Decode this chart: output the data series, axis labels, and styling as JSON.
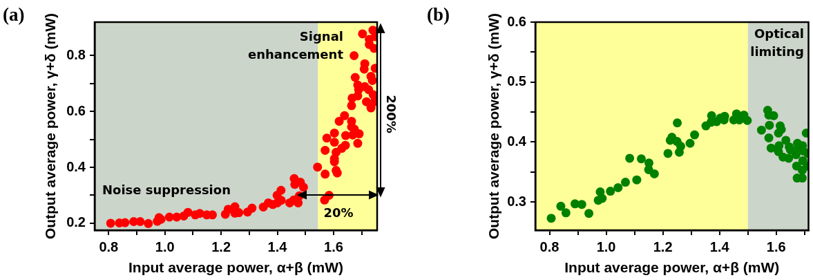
{
  "chart_data": [
    {
      "type": "scatter",
      "title": "(a)",
      "xlabel": "Input average power, α+β (mW)",
      "ylabel": "Output average power, γ+δ (mW)",
      "color": "#ff0000",
      "marker": "circle",
      "grid": false,
      "legend": false,
      "x": [
        0.807,
        0.838,
        0.858,
        0.889,
        0.912,
        0.941,
        0.973,
        0.979,
        0.986,
        1.016,
        1.042,
        1.067,
        1.082,
        1.108,
        1.124,
        1.149,
        1.169,
        1.215,
        1.225,
        1.249,
        1.249,
        1.263,
        1.294,
        1.31,
        1.35,
        1.368,
        1.384,
        1.4,
        1.399,
        1.413,
        1.414,
        1.444,
        1.458,
        1.46,
        1.462,
        1.474,
        1.482,
        1.478,
        1.493,
        1.543,
        1.57,
        1.568,
        1.584,
        1.57,
        1.576,
        1.603,
        1.603,
        1.609,
        1.603,
        1.603,
        1.609,
        1.613,
        1.62,
        1.639,
        1.629,
        1.642,
        1.643,
        1.664,
        1.664,
        1.668,
        1.674,
        1.691,
        1.686,
        1.664,
        1.666,
        1.686,
        1.689,
        1.686,
        1.677,
        1.717,
        1.733,
        1.711,
        1.725,
        1.741,
        1.746,
        1.733,
        1.738,
        1.709,
        1.711,
        1.748,
        1.673,
        1.703,
        1.727,
        1.727,
        1.744,
        1.74,
        1.748
      ],
      "values": [
        0.2,
        0.201,
        0.202,
        0.206,
        0.206,
        0.199,
        0.207,
        0.22,
        0.214,
        0.222,
        0.222,
        0.226,
        0.239,
        0.23,
        0.235,
        0.23,
        0.23,
        0.232,
        0.25,
        0.259,
        0.236,
        0.238,
        0.24,
        0.254,
        0.258,
        0.273,
        0.267,
        0.273,
        0.3,
        0.318,
        0.282,
        0.273,
        0.283,
        0.36,
        0.339,
        0.273,
        0.347,
        0.298,
        0.329,
        0.401,
        0.376,
        0.283,
        0.3,
        0.461,
        0.505,
        0.523,
        0.49,
        0.454,
        0.431,
        0.42,
        0.389,
        0.38,
        0.565,
        0.585,
        0.468,
        0.479,
        0.514,
        0.565,
        0.545,
        0.516,
        0.537,
        0.52,
        0.486,
        0.621,
        0.648,
        0.656,
        0.678,
        0.695,
        0.722,
        0.635,
        0.613,
        0.689,
        0.678,
        0.66,
        0.635,
        0.726,
        0.711,
        0.752,
        0.771,
        0.755,
        0.8,
        0.878,
        0.858,
        0.84,
        0.826,
        0.891,
        0.868
      ],
      "xlim": [
        0.75,
        1.755
      ],
      "ylim": [
        0.175,
        0.92
      ],
      "xticks": [
        0.8,
        {
          "value": 0.9,
          "label": null
        },
        {
          "value": 1,
          "label": "1.0"
        },
        {
          "value": 1.1,
          "label": null
        },
        1.2,
        {
          "value": 1.3,
          "label": null
        },
        1.4,
        {
          "value": 1.5,
          "label": null
        },
        1.6,
        {
          "value": 1.7,
          "label": null
        }
      ],
      "yticks": [
        0.2,
        {
          "value": 0.3,
          "label": null
        },
        0.4,
        {
          "value": 0.5,
          "label": null
        },
        0.6,
        {
          "value": 0.7,
          "label": null
        },
        0.8
      ],
      "bands": [
        {
          "axis": "x",
          "from": 0.75,
          "to": 1.545,
          "label": "Noise suppression",
          "color": "#ccd5c9"
        },
        {
          "axis": "x",
          "from": 1.545,
          "to": 1.755,
          "label": "Signal enhancement",
          "color": "#ffff99"
        }
      ],
      "annotations": [
        "20%",
        "200%"
      ]
    },
    {
      "type": "scatter",
      "title": "(b)",
      "xlabel": "Input average power, α+β (mW)",
      "ylabel": "Output average power, γ+δ (mW)",
      "color": "#008000",
      "marker": "circle",
      "grid": false,
      "legend": false,
      "x": [
        0.806,
        0.84,
        0.858,
        0.89,
        0.914,
        0.939,
        0.972,
        0.979,
        0.986,
        1.015,
        1.042,
        1.068,
        1.083,
        1.108,
        1.124,
        1.151,
        1.15,
        1.17,
        1.218,
        1.226,
        1.232,
        1.251,
        1.25,
        1.263,
        1.258,
        1.296,
        1.312,
        1.352,
        1.372,
        1.37,
        1.39,
        1.403,
        1.418,
        1.416,
        1.45,
        1.46,
        1.47,
        1.486,
        1.498,
        1.548,
        1.57,
        1.574,
        1.591,
        1.576,
        1.574,
        1.582,
        1.608,
        1.61,
        1.614,
        1.618,
        1.608,
        1.624,
        1.634,
        1.644,
        1.646,
        1.65,
        1.67,
        1.675,
        1.678,
        1.672,
        1.674,
        1.692,
        1.692,
        1.693,
        1.696,
        1.694,
        1.706,
        1.71,
        1.711
      ],
      "values": [
        0.273,
        0.293,
        0.282,
        0.297,
        0.296,
        0.281,
        0.303,
        0.317,
        0.306,
        0.318,
        0.324,
        0.333,
        0.373,
        0.337,
        0.372,
        0.365,
        0.354,
        0.347,
        0.381,
        0.403,
        0.408,
        0.432,
        0.401,
        0.393,
        0.383,
        0.398,
        0.412,
        0.427,
        0.444,
        0.433,
        0.434,
        0.44,
        0.443,
        0.437,
        0.437,
        0.447,
        0.437,
        0.445,
        0.436,
        0.42,
        0.453,
        0.445,
        0.444,
        0.428,
        0.407,
        0.39,
        0.415,
        0.394,
        0.427,
        0.421,
        0.384,
        0.375,
        0.403,
        0.373,
        0.392,
        0.387,
        0.379,
        0.398,
        0.391,
        0.36,
        0.34,
        0.34,
        0.353,
        0.394,
        0.385,
        0.369,
        0.415,
        0.36,
        0.381
      ],
      "xlim": [
        0.75,
        1.714
      ],
      "ylim": [
        0.253,
        0.6
      ],
      "xticks": [
        0.8,
        {
          "value": 0.9,
          "label": null
        },
        {
          "value": 1,
          "label": "1.0"
        },
        {
          "value": 1.1,
          "label": null
        },
        1.2,
        {
          "value": 1.3,
          "label": null
        },
        1.4,
        {
          "value": 1.5,
          "label": null
        },
        1.6,
        {
          "value": 1.7,
          "label": null
        }
      ],
      "yticks": [
        0.3,
        {
          "value": 0.35,
          "label": null
        },
        0.4,
        {
          "value": 0.45,
          "label": null
        },
        0.5,
        {
          "value": 0.55,
          "label": null
        },
        0.6
      ],
      "bands": [
        {
          "axis": "x",
          "from": 0.75,
          "to": 1.5,
          "color": "#ffff99"
        },
        {
          "axis": "x",
          "from": 1.5,
          "to": 1.714,
          "label": "Optical limiting",
          "color": "#ccd5c9"
        }
      ]
    }
  ]
}
